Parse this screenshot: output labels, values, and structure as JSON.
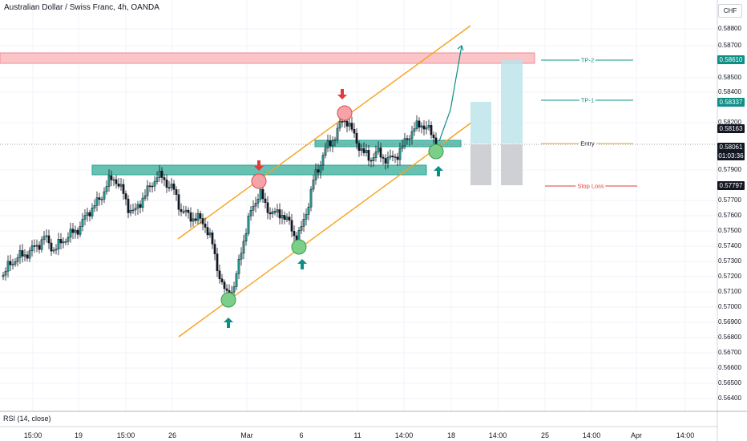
{
  "header": {
    "title": "Australian Dollar / Swiss Franc, 4h, OANDA",
    "indicator": "RSI (14, close)"
  },
  "currency_button": "CHF",
  "price_axis": {
    "ticks": [
      "0.58800",
      "0.58700",
      "0.58500",
      "0.58400",
      "0.58200",
      "0.57900",
      "0.57700",
      "0.57600",
      "0.57500",
      "0.57400",
      "0.57300",
      "0.57200",
      "0.57100",
      "0.57000",
      "0.56900",
      "0.56800",
      "0.56700",
      "0.56600",
      "0.56500",
      "0.56400"
    ],
    "tags": {
      "tp2": "0.58610",
      "tp1": "0.58337",
      "close": "0.58163",
      "current": "0.58061",
      "countdown": "01:03:36",
      "stop": "0.57797"
    }
  },
  "time_axis": [
    "15:00",
    "19",
    "15:00",
    "26",
    "Mar",
    "6",
    "11",
    "14:00",
    "18",
    "14:00",
    "25",
    "14:00",
    "Apr",
    "14:00"
  ],
  "trade_levels": {
    "tp2": "TP-2",
    "tp1": "TP-1",
    "entry": "Entry",
    "stop": "Stop Loss"
  },
  "colors": {
    "up": "#26a69a",
    "down": "#131722",
    "channel": "#f7a21b",
    "support": "#26a69a",
    "resistance": "#f7a6a6",
    "target": "#0e8f86",
    "stop": "#e03b3b",
    "entry": "#f0a92f"
  },
  "chart_data": {
    "type": "candlestick",
    "symbol": "AUDCHF",
    "timeframe": "4h",
    "ylim": [
      0.5633,
      0.5895
    ],
    "resistance_zone": [
      0.58605,
      0.5869
    ],
    "support_zones": [
      [
        0.5785,
        0.5792
      ],
      [
        0.5805,
        0.5811
      ]
    ],
    "levels": {
      "tp2": 0.5861,
      "tp1": 0.58337,
      "entry": 0.5806,
      "stop_loss": 0.57797
    },
    "current_price": 0.58061,
    "projection": [
      0.5806,
      0.5834,
      0.5876
    ]
  }
}
